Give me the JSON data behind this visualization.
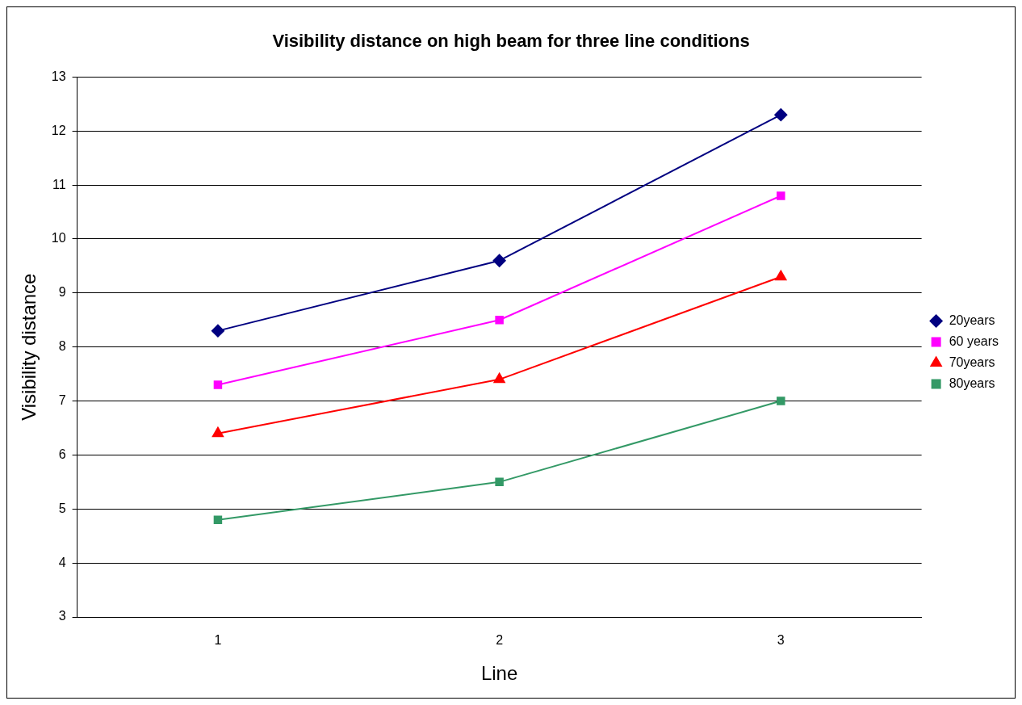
{
  "chart_data": {
    "type": "line",
    "title": "Visibility distance on high beam for three line conditions",
    "xlabel": "Line",
    "ylabel": "Visibility distance",
    "categories": [
      "1",
      "2",
      "3"
    ],
    "series": [
      {
        "name": "20years",
        "color": "#000080",
        "marker": "diamond",
        "values": [
          8.3,
          9.6,
          12.3
        ]
      },
      {
        "name": "60 years",
        "color": "#ff00ff",
        "marker": "square",
        "values": [
          7.3,
          8.5,
          10.8
        ]
      },
      {
        "name": "70years",
        "color": "#ff0000",
        "marker": "triangle",
        "values": [
          6.4,
          7.4,
          9.3
        ]
      },
      {
        "name": "80years",
        "color": "#339966",
        "marker": "square",
        "values": [
          4.8,
          5.5,
          7.0
        ]
      }
    ],
    "ylim": [
      3,
      13
    ],
    "yticks": [
      3,
      4,
      5,
      6,
      7,
      8,
      9,
      10,
      11,
      12,
      13
    ],
    "grid": "y",
    "legend": "right",
    "line_style": "solid"
  }
}
